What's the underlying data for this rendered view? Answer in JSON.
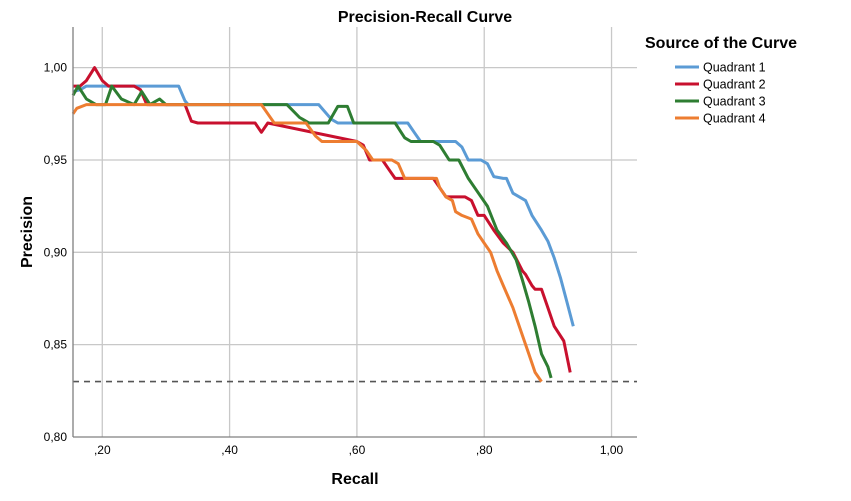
{
  "chart_data": {
    "type": "line",
    "title": "Precision-Recall Curve",
    "xlabel": "Recall",
    "ylabel": "Precision",
    "xlim": [
      0.154,
      1.04
    ],
    "ylim": [
      0.8,
      1.022
    ],
    "xticks": [
      0.2,
      0.4,
      0.6,
      0.8,
      1.0
    ],
    "xtick_labels": [
      ",20",
      ",40",
      ",60",
      ",80",
      "1,00"
    ],
    "yticks": [
      0.8,
      0.85,
      0.9,
      0.95,
      1.0
    ],
    "ytick_labels": [
      "0,80",
      "0,85",
      "0,90",
      "0,95",
      "1,00"
    ],
    "grid": true,
    "reference_line": {
      "y": 0.83,
      "style": "dashed",
      "color": "#555555"
    },
    "legend": {
      "title": "Source of the Curve",
      "position": "top-right-outside"
    },
    "series": [
      {
        "name": "Quadrant 1",
        "color": "#5b9bd5",
        "x": [
          0.154,
          0.165,
          0.175,
          0.19,
          0.32,
          0.33,
          0.335,
          0.54,
          0.56,
          0.57,
          0.68,
          0.69,
          0.7,
          0.755,
          0.765,
          0.775,
          0.795,
          0.805,
          0.815,
          0.83,
          0.835,
          0.845,
          0.865,
          0.875,
          0.89,
          0.9,
          0.91,
          0.92,
          0.93,
          0.94
        ],
        "y": [
          0.987,
          0.988,
          0.99,
          0.99,
          0.99,
          0.982,
          0.98,
          0.98,
          0.972,
          0.97,
          0.97,
          0.965,
          0.96,
          0.96,
          0.957,
          0.95,
          0.95,
          0.948,
          0.941,
          0.94,
          0.94,
          0.932,
          0.928,
          0.92,
          0.912,
          0.906,
          0.897,
          0.886,
          0.873,
          0.86
        ]
      },
      {
        "name": "Quadrant 2",
        "color": "#c8102e",
        "x": [
          0.154,
          0.165,
          0.175,
          0.188,
          0.2,
          0.21,
          0.25,
          0.26,
          0.27,
          0.33,
          0.34,
          0.35,
          0.44,
          0.45,
          0.46,
          0.6,
          0.61,
          0.62,
          0.64,
          0.65,
          0.66,
          0.72,
          0.73,
          0.74,
          0.77,
          0.78,
          0.79,
          0.8,
          0.815,
          0.83,
          0.845,
          0.86,
          0.865,
          0.875,
          0.88,
          0.89,
          0.9,
          0.91,
          0.925,
          0.935
        ],
        "y": [
          0.99,
          0.99,
          0.993,
          1.0,
          0.993,
          0.99,
          0.99,
          0.988,
          0.98,
          0.98,
          0.971,
          0.97,
          0.97,
          0.965,
          0.97,
          0.96,
          0.958,
          0.95,
          0.95,
          0.945,
          0.94,
          0.94,
          0.935,
          0.93,
          0.93,
          0.928,
          0.92,
          0.92,
          0.912,
          0.905,
          0.9,
          0.89,
          0.888,
          0.882,
          0.88,
          0.88,
          0.87,
          0.86,
          0.852,
          0.835
        ]
      },
      {
        "name": "Quadrant 3",
        "color": "#2e7d32",
        "x": [
          0.154,
          0.162,
          0.175,
          0.19,
          0.205,
          0.215,
          0.23,
          0.25,
          0.262,
          0.275,
          0.29,
          0.3,
          0.31,
          0.49,
          0.51,
          0.515,
          0.525,
          0.535,
          0.555,
          0.57,
          0.585,
          0.595,
          0.605,
          0.615,
          0.66,
          0.675,
          0.685,
          0.72,
          0.73,
          0.745,
          0.76,
          0.775,
          0.785,
          0.805,
          0.82,
          0.835,
          0.85,
          0.86,
          0.87,
          0.88,
          0.89,
          0.9,
          0.905
        ],
        "y": [
          0.985,
          0.99,
          0.983,
          0.98,
          0.98,
          0.99,
          0.983,
          0.98,
          0.987,
          0.98,
          0.983,
          0.98,
          0.98,
          0.98,
          0.973,
          0.972,
          0.97,
          0.97,
          0.97,
          0.979,
          0.979,
          0.97,
          0.97,
          0.97,
          0.97,
          0.962,
          0.96,
          0.96,
          0.958,
          0.95,
          0.95,
          0.94,
          0.935,
          0.925,
          0.912,
          0.905,
          0.896,
          0.885,
          0.873,
          0.86,
          0.845,
          0.838,
          0.832
        ]
      },
      {
        "name": "Quadrant 4",
        "color": "#ed7d31",
        "x": [
          0.154,
          0.16,
          0.175,
          0.19,
          0.45,
          0.46,
          0.47,
          0.52,
          0.535,
          0.545,
          0.6,
          0.615,
          0.625,
          0.655,
          0.665,
          0.675,
          0.69,
          0.725,
          0.73,
          0.74,
          0.75,
          0.755,
          0.765,
          0.78,
          0.79,
          0.8,
          0.81,
          0.82,
          0.83,
          0.845,
          0.86,
          0.87,
          0.88,
          0.89
        ],
        "y": [
          0.975,
          0.978,
          0.98,
          0.98,
          0.98,
          0.975,
          0.97,
          0.97,
          0.963,
          0.96,
          0.96,
          0.955,
          0.95,
          0.95,
          0.948,
          0.94,
          0.94,
          0.94,
          0.935,
          0.93,
          0.928,
          0.922,
          0.92,
          0.918,
          0.91,
          0.905,
          0.9,
          0.89,
          0.882,
          0.87,
          0.855,
          0.845,
          0.835,
          0.83
        ]
      }
    ]
  }
}
